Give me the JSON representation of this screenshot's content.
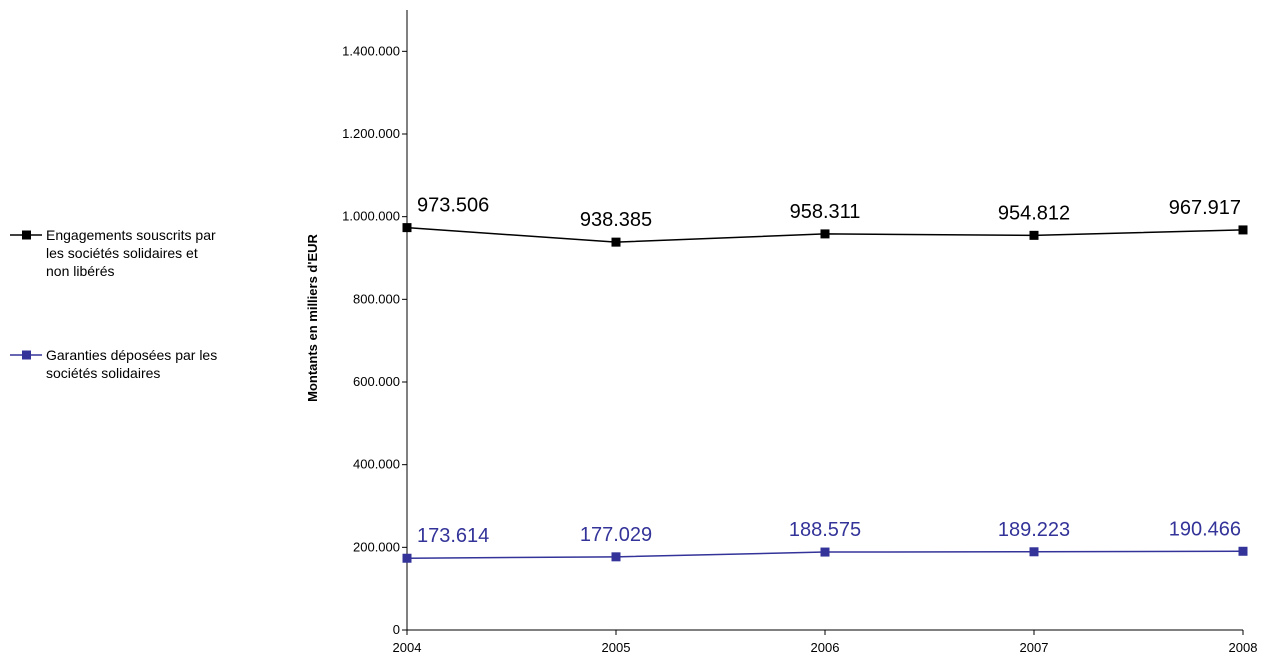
{
  "chart_data": {
    "type": "line",
    "x": [
      "2004",
      "2005",
      "2006",
      "2007",
      "2008"
    ],
    "ylabel": "Montants en milliers d'EUR",
    "ylim": [
      0,
      1500000
    ],
    "yticks": [
      0,
      200000,
      400000,
      600000,
      800000,
      1000000,
      1200000,
      1400000
    ],
    "ytick_labels": [
      "0",
      "200.000",
      "400.000",
      "600.000",
      "800.000",
      "1.000.000",
      "1.200.000",
      "1.400.000"
    ],
    "grid": false,
    "legend_position": "left",
    "series": [
      {
        "name": "Engagements souscrits par les sociétés solidaires et non libérés",
        "legend_lines": [
          "Engagements souscrits par",
          "les sociétés solidaires et",
          "non libérés"
        ],
        "values": [
          973506,
          938385,
          958311,
          954812,
          967917
        ],
        "data_labels": [
          "973.506",
          "938.385",
          "958.311",
          "954.812",
          "967.917"
        ],
        "color": "#000000"
      },
      {
        "name": "Garanties déposées par les sociétés solidaires",
        "legend_lines": [
          "Garanties déposées par les",
          "sociétés solidaires"
        ],
        "values": [
          173614,
          177029,
          188575,
          189223,
          190466
        ],
        "data_labels": [
          "173.614",
          "177.029",
          "188.575",
          "189.223",
          "190.466"
        ],
        "color": "#333399"
      }
    ]
  }
}
